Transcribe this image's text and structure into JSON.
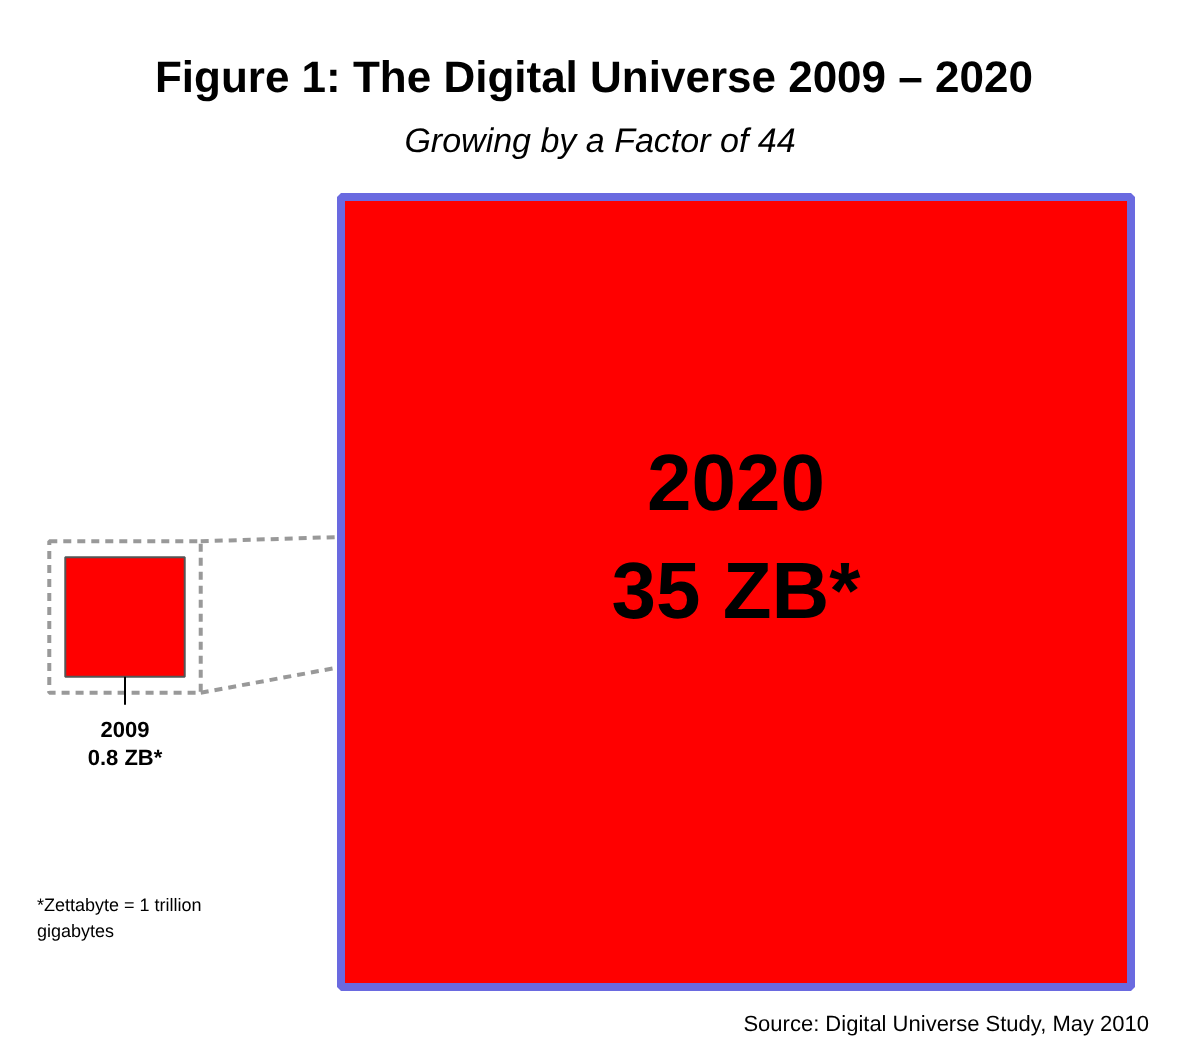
{
  "chart_data": {
    "type": "other",
    "title": "Figure 1:  The Digital Universe 2009 – 2020",
    "subtitle": "Growing by a Factor of 44",
    "categories": [
      "2009",
      "2020"
    ],
    "values": [
      0.8,
      35
    ],
    "value_labels": [
      "0.8 ZB*",
      "35 ZB*"
    ],
    "colors": [
      "#ff0000",
      "#ff0000"
    ],
    "annotations": [
      "*Zettabyte = 1 trillion gigabytes",
      "Source: Digital Universe Study, May 2010"
    ]
  }
}
